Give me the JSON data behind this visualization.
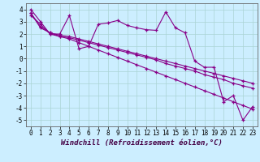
{
  "xlabel": "Windchill (Refroidissement éolien,°C)",
  "background_color": "#cceeff",
  "grid_color": "#aad4d4",
  "line_color": "#880088",
  "xlim": [
    -0.5,
    23.5
  ],
  "ylim": [
    -5.5,
    4.5
  ],
  "yticks": [
    -5,
    -4,
    -3,
    -2,
    -1,
    0,
    1,
    2,
    3,
    4
  ],
  "xticks": [
    0,
    1,
    2,
    3,
    4,
    5,
    6,
    7,
    8,
    9,
    10,
    11,
    12,
    13,
    14,
    15,
    16,
    17,
    18,
    19,
    20,
    21,
    22,
    23
  ],
  "series1_x": [
    0,
    1,
    2,
    3,
    4,
    5,
    6,
    7,
    8,
    9,
    10,
    11,
    12,
    13,
    14,
    15,
    16,
    17,
    18,
    19,
    20,
    21,
    22,
    23
  ],
  "series1_y": [
    4.0,
    3.0,
    2.0,
    2.0,
    3.5,
    0.8,
    1.0,
    2.8,
    2.9,
    3.1,
    2.7,
    2.5,
    2.35,
    2.3,
    3.8,
    2.5,
    2.1,
    -0.2,
    -0.7,
    -0.7,
    -3.5,
    -3.0,
    -5.0,
    -3.9
  ],
  "series2_x": [
    0,
    1,
    2,
    3,
    4,
    5,
    6,
    7,
    8,
    9,
    10,
    11,
    12,
    13,
    14,
    15,
    16,
    17,
    18,
    19,
    20,
    21,
    22,
    23
  ],
  "series2_y": [
    3.5,
    2.8,
    2.0,
    1.8,
    1.7,
    1.5,
    1.3,
    1.1,
    0.9,
    0.7,
    0.5,
    0.3,
    0.1,
    -0.1,
    -0.4,
    -0.6,
    -0.8,
    -1.0,
    -1.3,
    -1.5,
    -1.7,
    -2.0,
    -2.2,
    -2.4
  ],
  "series3_x": [
    0,
    1,
    2,
    3,
    4,
    5,
    6,
    7,
    8,
    9,
    10,
    11,
    12,
    13,
    14,
    15,
    16,
    17,
    18,
    19,
    20,
    21,
    22,
    23
  ],
  "series3_y": [
    3.7,
    2.5,
    2.1,
    1.8,
    1.6,
    1.3,
    1.0,
    0.7,
    0.4,
    0.1,
    -0.2,
    -0.5,
    -0.8,
    -1.1,
    -1.4,
    -1.7,
    -2.0,
    -2.3,
    -2.6,
    -2.9,
    -3.2,
    -3.5,
    -3.8,
    -4.1
  ],
  "series4_x": [
    0,
    1,
    2,
    3,
    4,
    5,
    6,
    7,
    8,
    9,
    10,
    11,
    12,
    13,
    14,
    15,
    16,
    17,
    18,
    19,
    20,
    21,
    22,
    23
  ],
  "series4_y": [
    3.7,
    2.6,
    2.1,
    1.9,
    1.8,
    1.6,
    1.4,
    1.2,
    1.0,
    0.8,
    0.6,
    0.4,
    0.2,
    0.0,
    -0.2,
    -0.4,
    -0.6,
    -0.8,
    -1.0,
    -1.2,
    -1.4,
    -1.6,
    -1.8,
    -2.0
  ],
  "tick_fontsize": 5.5,
  "label_fontsize": 6.5
}
